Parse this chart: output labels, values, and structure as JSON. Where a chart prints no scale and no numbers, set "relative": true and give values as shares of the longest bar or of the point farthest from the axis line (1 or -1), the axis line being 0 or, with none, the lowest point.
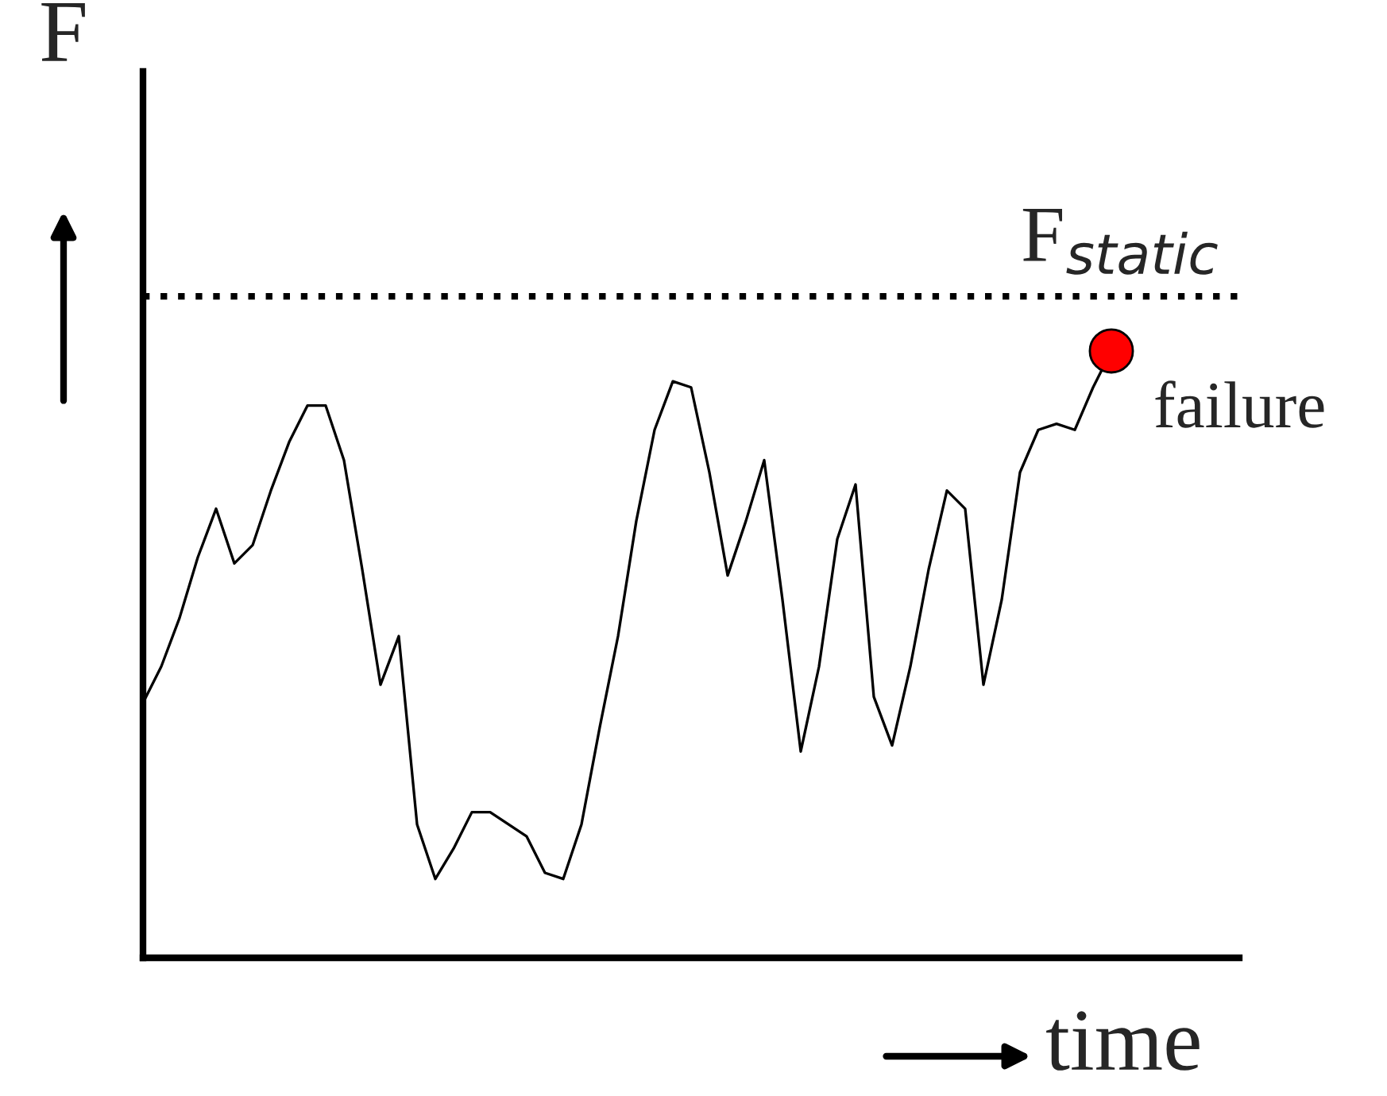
{
  "chart_data": {
    "type": "line",
    "relative": true,
    "xlabel": "time",
    "ylabel": "F",
    "categories": [
      null,
      null,
      null,
      null,
      null,
      null,
      null,
      null,
      null,
      null,
      null,
      null,
      null,
      null,
      null,
      null,
      null,
      null,
      null,
      null,
      null,
      null,
      null,
      null,
      null,
      null,
      null,
      null,
      null,
      null,
      null,
      null,
      null,
      null,
      null,
      null,
      null,
      null,
      null,
      null,
      null,
      null,
      null,
      null,
      null,
      null,
      null,
      null,
      null,
      null,
      null,
      null,
      null,
      null
    ],
    "series": [
      {
        "color": "#000000",
        "values": [
          0.42,
          0.48,
          0.56,
          0.66,
          0.74,
          0.65,
          0.68,
          0.77,
          0.85,
          0.91,
          0.91,
          0.82,
          0.64,
          0.45,
          0.53,
          0.22,
          0.13,
          0.18,
          0.24,
          0.24,
          0.22,
          0.2,
          0.14,
          0.13,
          0.22,
          0.38,
          0.53,
          0.72,
          0.87,
          0.95,
          0.94,
          0.8,
          0.63,
          0.72,
          0.82,
          0.59,
          0.34,
          0.48,
          0.69,
          0.78,
          0.43,
          0.35,
          0.48,
          0.64,
          0.77,
          0.74,
          0.45,
          0.59,
          0.8,
          0.87,
          0.88,
          0.87,
          0.94,
          1
        ]
      }
    ],
    "ref_lines": [
      {
        "axis": "y",
        "value": 1.09,
        "label": "F$_{static}$",
        "line_style": "dotted",
        "color": "#000000"
      }
    ],
    "annotations": [
      "failure"
    ],
    "legend": false
  }
}
